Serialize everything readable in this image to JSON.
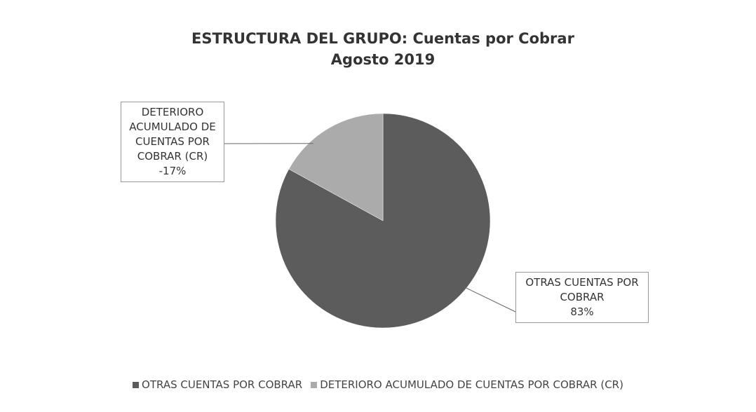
{
  "chart_data": {
    "type": "pie",
    "title": "ESTRUCTURA DEL GRUPO: Cuentas por Cobrar",
    "subtitle": "Agosto 2019",
    "categories": [
      "OTRAS CUENTAS POR COBRAR",
      "DETERIORO ACUMULADO DE CUENTAS POR COBRAR (CR)"
    ],
    "values": [
      83,
      -17
    ],
    "value_labels": [
      "83%",
      "-17%"
    ],
    "colors": [
      "#5c5c5c",
      "#ababab"
    ],
    "legend": "bottom"
  }
}
